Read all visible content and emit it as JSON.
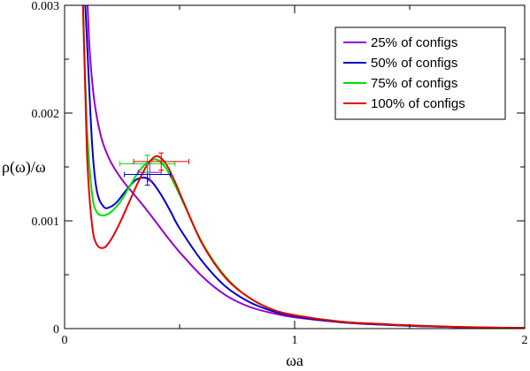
{
  "chart_data": {
    "type": "line",
    "xlabel": "ωa",
    "ylabel": "ρ(ω)/ω",
    "xlim": [
      0,
      2
    ],
    "ylim": [
      0,
      0.003
    ],
    "x_ticks": [
      {
        "value": 0,
        "label": "0"
      },
      {
        "value": 1,
        "label": "1"
      },
      {
        "value": 2,
        "label": "2"
      }
    ],
    "y_ticks": [
      {
        "value": 0,
        "label": "0"
      },
      {
        "value": 0.001,
        "label": "0.001"
      },
      {
        "value": 0.002,
        "label": "0.002"
      },
      {
        "value": 0.003,
        "label": "0.003"
      }
    ],
    "grid": false,
    "legend_position": "top-right",
    "series": [
      {
        "name": "25% of configs",
        "color": "#9400d3",
        "x": [
          0.1,
          0.11,
          0.13,
          0.16,
          0.2,
          0.25,
          0.3,
          0.35,
          0.4,
          0.45,
          0.5,
          0.6,
          0.7,
          0.8,
          0.9,
          1.0,
          1.2,
          1.4,
          1.6,
          1.8,
          2.0
        ],
        "y": [
          0.003,
          0.00255,
          0.0021,
          0.00177,
          0.00155,
          0.00138,
          0.00125,
          0.00112,
          0.00098,
          0.00084,
          0.00071,
          0.00048,
          0.00031,
          0.000205,
          0.000145,
          0.000105,
          6e-05,
          3.5e-05,
          2e-05,
          1e-05,
          5e-06
        ]
      },
      {
        "name": "50% of configs",
        "color": "#0000cd",
        "x": [
          0.09,
          0.1,
          0.12,
          0.14,
          0.17,
          0.2,
          0.23,
          0.27,
          0.31,
          0.35,
          0.38,
          0.42,
          0.46,
          0.5,
          0.6,
          0.7,
          0.8,
          0.9,
          1.0,
          1.2,
          1.4,
          1.6,
          1.8,
          2.0
        ],
        "y": [
          0.003,
          0.00255,
          0.0017,
          0.00128,
          0.00113,
          0.00113,
          0.00118,
          0.00129,
          0.00138,
          0.0014,
          0.00136,
          0.00124,
          0.00109,
          0.00093,
          0.00062,
          0.00039,
          0.00025,
          0.000165,
          0.000115,
          6e-05,
          3.5e-05,
          2e-05,
          1e-05,
          5e-06
        ]
      },
      {
        "name": "75% of configs",
        "color": "#00e000",
        "x": [
          0.08,
          0.09,
          0.1,
          0.12,
          0.14,
          0.17,
          0.2,
          0.24,
          0.28,
          0.32,
          0.36,
          0.4,
          0.44,
          0.48,
          0.52,
          0.6,
          0.7,
          0.8,
          0.9,
          1.0,
          1.2,
          1.4,
          1.6,
          1.8,
          2.0
        ],
        "y": [
          0.003,
          0.0023,
          0.00175,
          0.00124,
          0.00108,
          0.00105,
          0.00108,
          0.00117,
          0.00131,
          0.00145,
          0.00154,
          0.00157,
          0.00149,
          0.00133,
          0.00115,
          0.00079,
          0.00048,
          0.00029,
          0.00018,
          0.000125,
          6.5e-05,
          4e-05,
          2.2e-05,
          1.2e-05,
          6e-06
        ]
      },
      {
        "name": "100% of configs",
        "color": "#e80000",
        "x": [
          0.08,
          0.09,
          0.1,
          0.12,
          0.14,
          0.17,
          0.2,
          0.24,
          0.28,
          0.32,
          0.36,
          0.4,
          0.44,
          0.48,
          0.52,
          0.6,
          0.7,
          0.8,
          0.9,
          1.0,
          1.2,
          1.4,
          1.6,
          1.8,
          2.0
        ],
        "y": [
          0.003,
          0.0022,
          0.0015,
          0.00095,
          0.00078,
          0.00075,
          0.00082,
          0.00098,
          0.00117,
          0.00136,
          0.00152,
          0.0016,
          0.00153,
          0.00136,
          0.00116,
          0.00078,
          0.00047,
          0.00029,
          0.00018,
          0.000125,
          6.5e-05,
          4e-05,
          2.2e-05,
          1.2e-05,
          6e-06
        ]
      }
    ],
    "error_bars": [
      {
        "series": "25% of configs",
        "color": "#9400d3",
        "x": 0.37,
        "y": 0.00145,
        "xerr": 0.05,
        "yerr": 8e-05
      },
      {
        "series": "50% of configs",
        "color": "#0000cd",
        "x": 0.36,
        "y": 0.00143,
        "xerr": 0.1,
        "yerr": 0.0001
      },
      {
        "series": "75% of configs",
        "color": "#00e000",
        "x": 0.36,
        "y": 0.00153,
        "xerr": 0.12,
        "yerr": 8e-05
      },
      {
        "series": "100% of configs",
        "color": "#e80000",
        "x": 0.42,
        "y": 0.00155,
        "xerr": 0.12,
        "yerr": 8e-05
      }
    ]
  }
}
